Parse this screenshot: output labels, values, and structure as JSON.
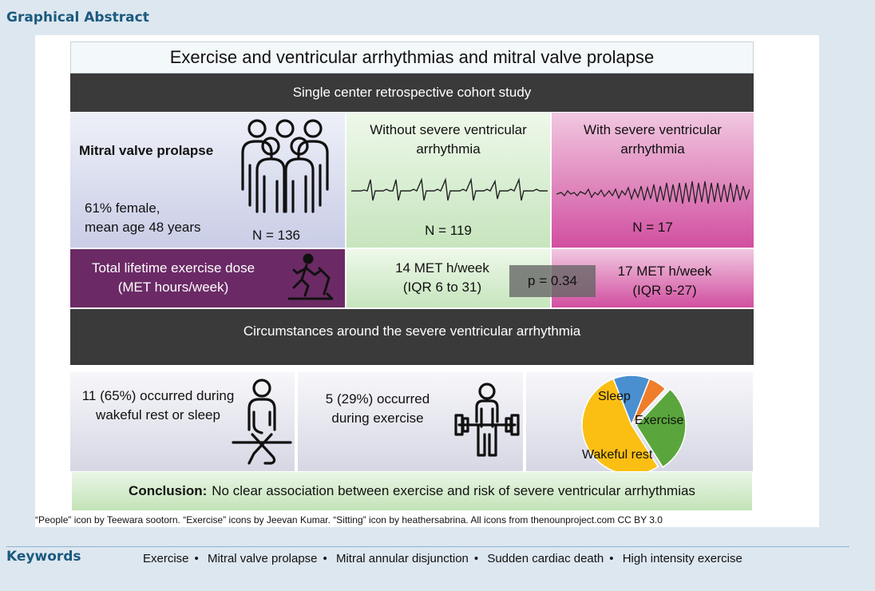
{
  "section_title": "Graphical Abstract",
  "abstract": {
    "title": "Exercise and ventricular arrhythmias and mitral valve prolapse",
    "study_type": "Single center retrospective cohort study",
    "cohort": {
      "label": "Mitral valve prolapse",
      "demographics_line1": "61% female,",
      "demographics_line2": "mean age 48 years",
      "n": "N = 136",
      "icon": "people-icon"
    },
    "group_without": {
      "label_line1": "Without severe ventricular",
      "label_line2": "arrhythmia",
      "n": "N = 119",
      "dose_line1": "14 MET h/week",
      "dose_line2": "(IQR 6 to 31)"
    },
    "group_with": {
      "label_line1": "With severe ventricular",
      "label_line2": "arrhythmia",
      "n": "N = 17",
      "dose_line1": "17 MET h/week",
      "dose_line2": "(IQR 9-27)"
    },
    "exposure": {
      "label_line1": "Total lifetime exercise dose",
      "label_line2": "(MET hours/week)",
      "icon": "treadmill-runner-icon"
    },
    "p_value": "p = 0.34",
    "circumstances_header": "Circumstances around the severe ventricular arrhythmia",
    "rest": {
      "line1": "11 (65%) occurred during",
      "line2": "wakeful rest or sleep",
      "icon": "sitting-person-icon"
    },
    "exercise": {
      "line1": "5 (29%) occurred",
      "line2": "during exercise",
      "icon": "weightlifter-icon"
    },
    "conclusion_label": "Conclusion:",
    "conclusion_text": "No clear association between exercise and risk of severe ventricular arrhythmias"
  },
  "chart_data": {
    "type": "pie",
    "labels": [
      "Sleep",
      "",
      "Exercise",
      "Wakeful rest"
    ],
    "values": [
      12,
      6,
      29,
      53
    ],
    "colors": [
      "#4a8fd0",
      "#ef7d2a",
      "#5aa63c",
      "#fbbf14"
    ]
  },
  "footer_note": "“People” icon by Teewara sootorn.  “Exercise” icons by Jeevan Kumar. “Sitting” icon by heathersabrina.  All icons from thenounproject.com CC BY 3.0",
  "keywords_label": "Keywords",
  "keywords": [
    "Exercise",
    "Mitral valve prolapse",
    "Mitral annular disjunction",
    "Sudden cardiac death",
    "High intensity exercise"
  ]
}
